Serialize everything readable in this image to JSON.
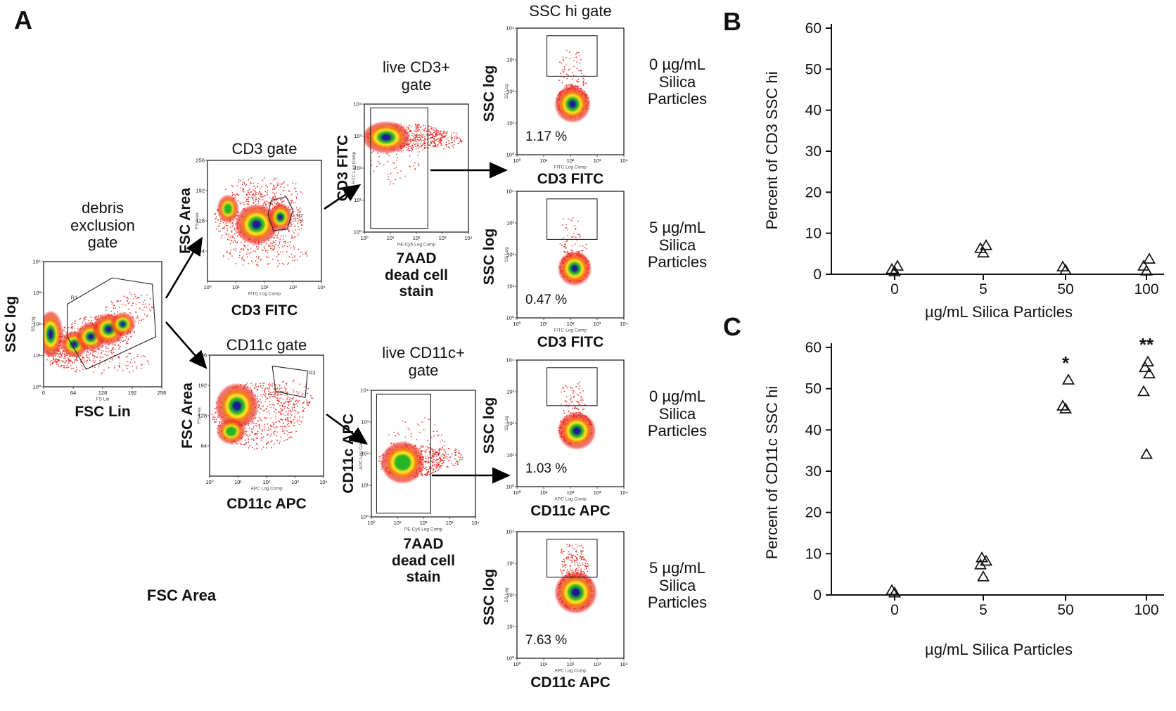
{
  "figure": {
    "panel_a_label": "A",
    "panel_b_label": "B",
    "panel_c_label": "C"
  },
  "flow": {
    "ticks": {
      "log_asc": [
        "10⁰",
        "10¹",
        "10²",
        "10³",
        "10⁴"
      ],
      "log_desc": [
        "10⁴",
        "10³",
        "10²",
        "10¹",
        "10⁰"
      ],
      "fsc_area": [
        "256",
        "192",
        "128",
        "64"
      ],
      "fsc_lin": [
        "0",
        "64",
        "128",
        "192",
        "256"
      ]
    },
    "debris": {
      "title": "debris exclusion gate",
      "ylabel": "SSC log",
      "xlabel": "FSC Lin",
      "inner_ylabel": "SS Log",
      "inner_xlabel": "FS Lin",
      "gate_label": "R1"
    },
    "cd3_gate": {
      "title": "CD3 gate",
      "ylabel": "FSC Area",
      "xlabel": "CD3 FITC",
      "inner_ylabel": "FS Area",
      "inner_xlabel": "FITC Log Comp",
      "gate_label": "R2"
    },
    "cd11c_gate": {
      "title": "CD11c gate",
      "ylabel": "FSC Area",
      "xlabel": "CD11c APC",
      "inner_ylabel": "FS Area",
      "inner_xlabel": "APC Log Comp",
      "gate_label": "R3"
    },
    "live_cd3": {
      "title": "live CD3+ gate",
      "ylabel": "CD3 FITC",
      "xlabel": "7AAD dead cell stain",
      "inner_ylabel": "FITC Log Comp",
      "inner_xlabel": "PE-Cy5 Log Comp"
    },
    "live_cd11c": {
      "title": "live CD11c+ gate",
      "ylabel": "CD11c APC",
      "xlabel": "7AAD dead cell stain",
      "inner_ylabel": "APC Log Comp",
      "inner_xlabel": "PE-Cy5 Log Comp"
    },
    "ssc_title": "SSC hi gate",
    "fsc_area_label": "FSC Area",
    "ssc_cd3_0": {
      "ylabel": "SSC log",
      "xlabel": "CD3 FITC",
      "percent": "1.17 %",
      "dose": "0 µg/mL Silica Particles",
      "inner_ylabel": "SS Log",
      "inner_xlabel": "FITC Log Comp"
    },
    "ssc_cd3_5": {
      "ylabel": "SSC log",
      "xlabel": "CD3 FITC",
      "percent": "0.47 %",
      "dose": "5 µg/mL Silica Particles",
      "inner_ylabel": "SS Log",
      "inner_xlabel": "FITC Log Comp"
    },
    "ssc_cd11c_0": {
      "ylabel": "SSC log",
      "xlabel": "CD11c APC",
      "percent": "1.03 %",
      "dose": "0 µg/mL Silica Particles",
      "inner_ylabel": "SS Log",
      "inner_xlabel": "APC Log Comp"
    },
    "ssc_cd11c_5": {
      "ylabel": "SSC log",
      "xlabel": "CD11c APC",
      "percent": "7.63 %",
      "dose": "5 µg/mL Silica Particles",
      "inner_ylabel": "SS Log",
      "inner_xlabel": "APC Log Comp"
    }
  },
  "chart_data": [
    {
      "type": "scatter",
      "panel": "B",
      "title": "",
      "xlabel": "µg/mL Silica Particles",
      "ylabel": "Percent of CD3 SSC hi",
      "categories": [
        "0",
        "5",
        "50",
        "100"
      ],
      "ylim": [
        0,
        60
      ],
      "yticks": [
        0,
        10,
        20,
        30,
        40,
        50,
        60
      ],
      "grid": false,
      "marker": "open-triangle",
      "points": {
        "0": [
          0.5,
          1.1,
          1.9
        ],
        "5": [
          5.1,
          6.2,
          6.9
        ],
        "50": [
          0.9,
          1.7
        ],
        "100": [
          0.7,
          1.9,
          3.6
        ]
      },
      "annotations": []
    },
    {
      "type": "scatter",
      "panel": "C",
      "title": "",
      "xlabel": "µg/mL Silica Particles",
      "ylabel": "Percent of CD11c SSC hi",
      "categories": [
        "0",
        "5",
        "50",
        "100"
      ],
      "ylim": [
        0,
        60
      ],
      "yticks": [
        0,
        10,
        20,
        30,
        40,
        50,
        60
      ],
      "grid": false,
      "marker": "open-triangle",
      "points": {
        "0": [
          0.4,
          1.0
        ],
        "5": [
          4.3,
          7.2,
          8.1,
          8.9
        ],
        "50": [
          45.0,
          45.7,
          52.0
        ],
        "100": [
          34.0,
          49.2,
          53.5,
          55.0,
          56.4
        ]
      },
      "annotations": [
        {
          "category": "50",
          "text": "*"
        },
        {
          "category": "100",
          "text": "**"
        }
      ]
    }
  ]
}
